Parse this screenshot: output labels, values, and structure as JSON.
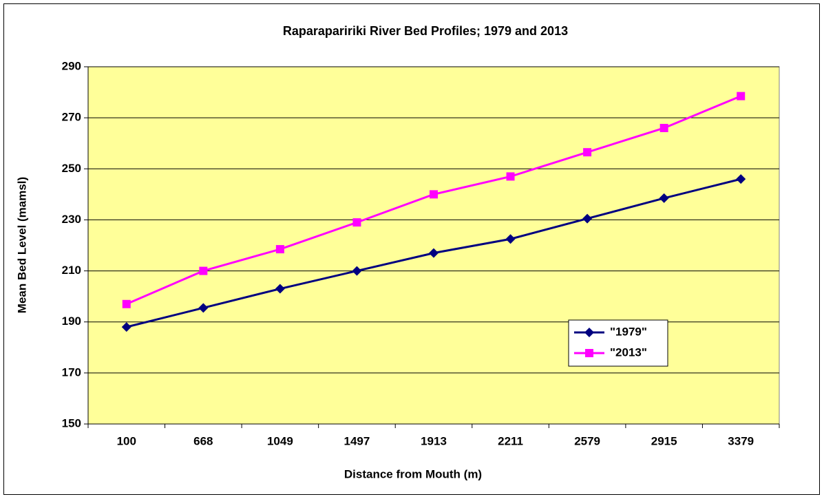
{
  "chart_data": {
    "type": "line",
    "title": "Raparapaririki River Bed Profiles; 1979 and 2013",
    "x_label": "Distance from Mouth (m)",
    "y_label": "Mean Bed Level (mamsl)",
    "categories": [
      "100",
      "668",
      "1049",
      "1497",
      "1913",
      "2211",
      "2579",
      "2915",
      "3379"
    ],
    "series": [
      {
        "name": "\"1979\"",
        "color": "#000080",
        "marker": "diamond",
        "values": [
          188,
          195.5,
          203,
          210,
          217,
          222.5,
          230.5,
          238.5,
          246
        ]
      },
      {
        "name": "\"2013\"",
        "color": "#ff00ff",
        "marker": "square",
        "values": [
          197,
          210,
          218.5,
          229,
          240,
          247,
          256.5,
          266,
          278.5
        ]
      }
    ],
    "ylim": [
      150,
      290
    ],
    "yticks": [
      150,
      170,
      190,
      210,
      230,
      250,
      270,
      290
    ],
    "grid": true,
    "plot_background": "#ffff99",
    "legend": "lower-right"
  }
}
